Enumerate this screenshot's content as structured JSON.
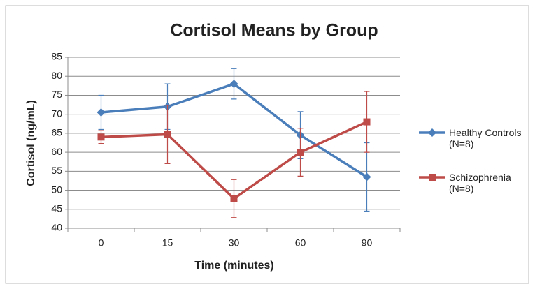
{
  "chart_data": {
    "type": "line",
    "title": "Cortisol Means by Group",
    "x_label": "Time (minutes)",
    "y_label": "Cortisol (ng/mL)",
    "categories": [
      "0",
      "15",
      "30",
      "60",
      "90"
    ],
    "series": [
      {
        "name": "Healthy Controls (N=8)",
        "color": "#4a7ebb",
        "marker": "diamond",
        "values": [
          70.5,
          72,
          78,
          64.5,
          53.5
        ],
        "errors": [
          4.5,
          6,
          4,
          6.2,
          9
        ]
      },
      {
        "name": "Schizophrenia (N=8)",
        "color": "#be4b48",
        "marker": "square",
        "values": [
          64,
          64.7,
          47.8,
          60,
          68
        ],
        "errors": [
          1.7,
          7.7,
          5,
          6.3,
          8
        ]
      }
    ],
    "ylim": [
      40,
      85
    ],
    "yticks": [
      40,
      45,
      50,
      55,
      60,
      65,
      70,
      75,
      80,
      85
    ],
    "grid": true
  }
}
